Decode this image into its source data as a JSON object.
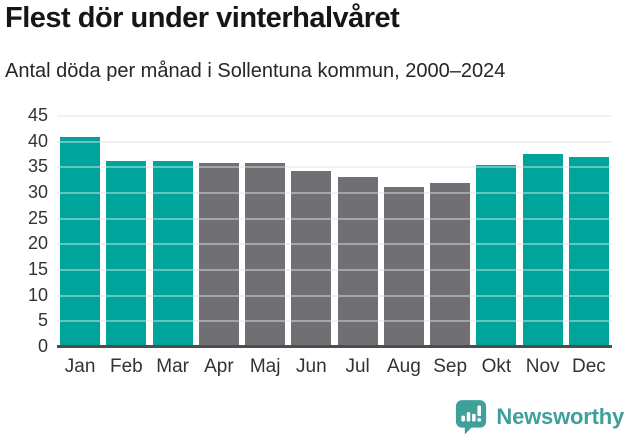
{
  "header": {
    "title": "Flest dör under vinterhalvåret",
    "subtitle": "Antal döda per månad i Sollentuna kommun, 2000–2024"
  },
  "chart_data": {
    "type": "bar",
    "title": "Flest dör under vinterhalvåret",
    "subtitle": "Antal döda per månad i Sollentuna kommun, 2000–2024",
    "categories": [
      "Jan",
      "Feb",
      "Mar",
      "Apr",
      "Maj",
      "Jun",
      "Jul",
      "Aug",
      "Sep",
      "Okt",
      "Nov",
      "Dec"
    ],
    "values": [
      41,
      36.3,
      36.3,
      35.9,
      35.9,
      34.2,
      33.2,
      31.2,
      32,
      35.5,
      37.6,
      37.1
    ],
    "bar_color_keys": [
      "teal",
      "teal",
      "teal",
      "gray",
      "gray",
      "gray",
      "gray",
      "gray",
      "gray",
      "teal",
      "teal",
      "teal"
    ],
    "colors": {
      "teal": "#00a49a",
      "gray": "#6f6f74"
    },
    "xlabel": "",
    "ylabel": "",
    "ylim": [
      0,
      45
    ],
    "yticks": [
      0,
      5,
      10,
      15,
      20,
      25,
      30,
      35,
      40,
      45
    ],
    "grid": true,
    "legend": false,
    "gridline_color": "#e8e8e8",
    "axis_line_color": "#4d4d4d"
  },
  "footer": {
    "brand": "Newsworthy",
    "brand_color": "#3fa099",
    "logo_icon": "bar-chart-exclamation-bubble-icon"
  }
}
